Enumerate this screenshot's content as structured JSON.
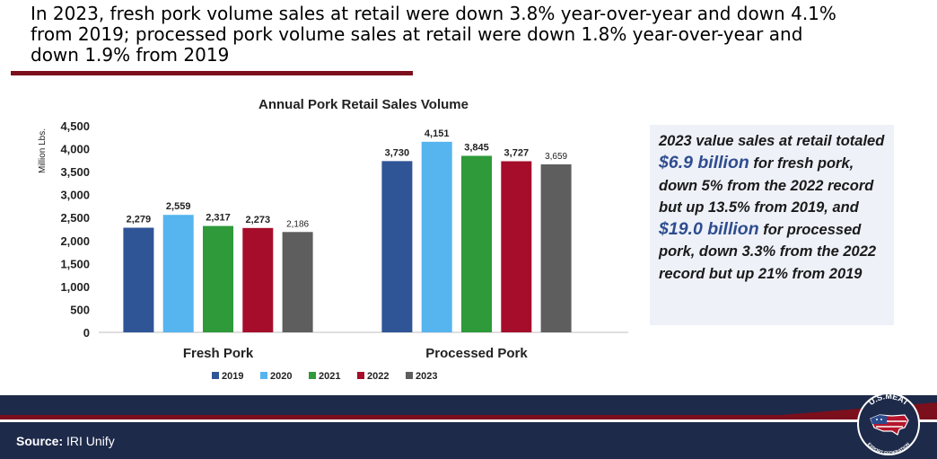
{
  "headline": "In 2023, fresh pork volume sales at retail were down 3.8% year-over-year and down 4.1% from 2019; processed pork volume sales at retail were down 1.8% year-over-year and down 1.9% from 2019",
  "callout": {
    "part1": "2023 value sales at retail totaled ",
    "value1": "$6.9 billion",
    "part2": " for fresh pork, down 5% from the 2022 record but up 13.5% from 2019, and ",
    "value2": "$19.0 billion",
    "part3": " for processed pork, down 3.3% from the 2022 record but up 21% from 2019"
  },
  "source": {
    "label": "Source:",
    "text": "IRI Unify"
  },
  "logo": {
    "text_top": "U.S.MEAT",
    "text_bottom": "EXPORT FEDERATION"
  },
  "colors": {
    "accent_red": "#7b0f1c",
    "navy": "#1e2a4a",
    "callout_bg": "#eef1f8"
  },
  "chart_data": {
    "type": "bar",
    "title": "Annual Pork Retail Sales Volume",
    "ylabel": "Million Lbs.",
    "xlabel": "",
    "categories": [
      "Fresh Pork",
      "Processed Pork"
    ],
    "ylim": [
      0,
      4500
    ],
    "yticks": [
      "4,500",
      "4,000",
      "3,500",
      "3,000",
      "2,500",
      "2,000",
      "1,500",
      "1,000",
      "500",
      "0"
    ],
    "grid": false,
    "legend_position": "bottom",
    "series": [
      {
        "name": "2019",
        "color": "#2f5597",
        "values": [
          2279,
          3730
        ],
        "labels": [
          "2,279",
          "3,730"
        ]
      },
      {
        "name": "2020",
        "color": "#56b4ef",
        "values": [
          2559,
          4151
        ],
        "labels": [
          "2,559",
          "4,151"
        ]
      },
      {
        "name": "2021",
        "color": "#2e9a3a",
        "values": [
          2317,
          3845
        ],
        "labels": [
          "2,317",
          "3,845"
        ]
      },
      {
        "name": "2022",
        "color": "#a50d2b",
        "values": [
          2273,
          3727
        ],
        "labels": [
          "2,273",
          "3,727"
        ]
      },
      {
        "name": "2023",
        "color": "#5e5e5e",
        "values": [
          2186,
          3659
        ],
        "labels": [
          "2,186",
          "3,659"
        ]
      }
    ]
  }
}
